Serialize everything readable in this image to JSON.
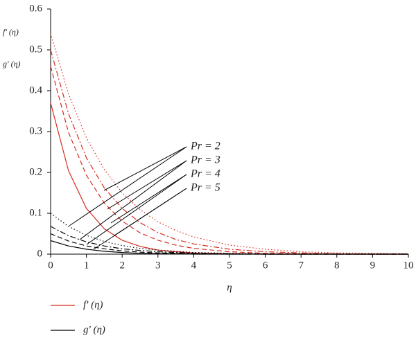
{
  "chart_data": {
    "type": "line",
    "y_labels": [
      "f' (η)",
      "g' (η)"
    ],
    "x_label": "η",
    "x": [
      0,
      0.5,
      1,
      1.5,
      2,
      2.5,
      3,
      3.5,
      4,
      5,
      6,
      7,
      8,
      9,
      10
    ],
    "series": [
      {
        "color": "#d62a1e",
        "dash": "solid",
        "values": [
          0.37,
          0.204,
          0.112,
          0.062,
          0.034,
          0.019,
          0.01,
          0.006,
          0.003,
          0.001,
          0,
          0,
          0,
          0,
          0
        ]
      },
      {
        "color": "#d62a1e",
        "dash": "dashed",
        "values": [
          0.46,
          0.298,
          0.193,
          0.125,
          0.081,
          0.052,
          0.034,
          0.022,
          0.014,
          0.006,
          0.002,
          0.001,
          0,
          0,
          0
        ]
      },
      {
        "color": "#d62a1e",
        "dash": "dashdot",
        "values": [
          0.5,
          0.344,
          0.236,
          0.162,
          0.112,
          0.077,
          0.053,
          0.036,
          0.025,
          0.012,
          0.006,
          0.003,
          0.001,
          0,
          0
        ]
      },
      {
        "color": "#d62a1e",
        "dash": "dotted",
        "values": [
          0.54,
          0.392,
          0.285,
          0.207,
          0.15,
          0.109,
          0.079,
          0.058,
          0.042,
          0.022,
          0.012,
          0.006,
          0.003,
          0.002,
          0.001
        ]
      },
      {
        "color": "#000000",
        "dash": "solid",
        "values": [
          0.033,
          0.02,
          0.012,
          0.007,
          0.004,
          0.002,
          0.001,
          0.001,
          0,
          0,
          0,
          0,
          0,
          0,
          0
        ]
      },
      {
        "color": "#000000",
        "dash": "dashed",
        "values": [
          0.05,
          0.032,
          0.02,
          0.013,
          0.008,
          0.005,
          0.003,
          0.002,
          0.001,
          0,
          0,
          0,
          0,
          0,
          0
        ]
      },
      {
        "color": "#000000",
        "dash": "dashdot",
        "values": [
          0.068,
          0.045,
          0.03,
          0.02,
          0.013,
          0.009,
          0.006,
          0.004,
          0.002,
          0.001,
          0,
          0,
          0,
          0,
          0
        ]
      },
      {
        "color": "#000000",
        "dash": "dotted",
        "values": [
          0.1,
          0.068,
          0.046,
          0.031,
          0.021,
          0.014,
          0.01,
          0.007,
          0.004,
          0.002,
          0.001,
          0,
          0,
          0,
          0
        ]
      }
    ],
    "legend": [
      {
        "label": "f' (η)",
        "color": "#d62a1e"
      },
      {
        "label": "g' (η)",
        "color": "#000000"
      }
    ],
    "annotations": [
      "Pr = 2",
      "Pr = 3",
      "Pr = 4",
      "Pr = 5"
    ],
    "xlim": [
      0,
      10
    ],
    "xticks": [
      0,
      1,
      2,
      3,
      4,
      5,
      6,
      7,
      8,
      9,
      10
    ],
    "ylim": [
      0,
      0.6
    ],
    "yticks": [
      0,
      0.1,
      0.2,
      0.3,
      0.4,
      0.5,
      0.6
    ],
    "grid": false
  }
}
